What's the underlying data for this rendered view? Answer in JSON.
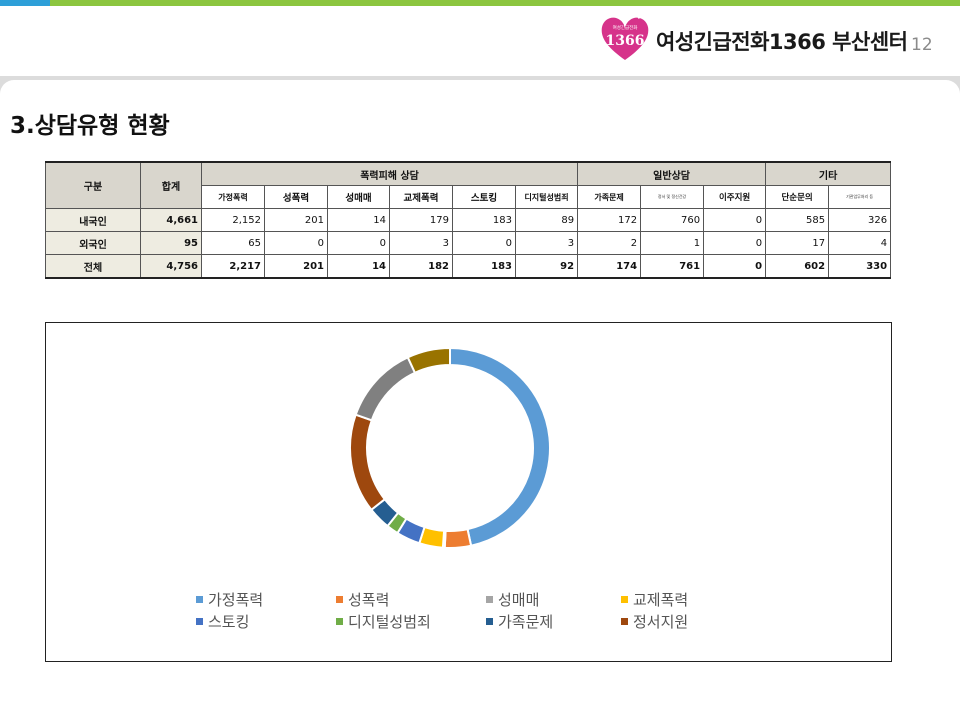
{
  "header": {
    "org_name": "여성긴급전화1366 부산센터",
    "page_number": "12",
    "logo_text": "1366",
    "logo_small_text": "여성긴급전화"
  },
  "title": "3.상담유형 현황",
  "table": {
    "group_header": "구분",
    "total_header": "합계",
    "groups": [
      "폭력피해 상담",
      "일반상담",
      "기타"
    ],
    "sub_headers": [
      "가정폭력",
      "성폭력",
      "성매매",
      "교제폭력",
      "스토킹",
      "디지털성범죄",
      "가족문제",
      "정서 및 정신건강",
      "이주지원",
      "단순문의",
      "기관업무처리 등"
    ],
    "rows": [
      {
        "label": "내국인",
        "total": "4,661",
        "values": [
          "2,152",
          "201",
          "14",
          "179",
          "183",
          "89",
          "172",
          "760",
          "0",
          "585",
          "326"
        ]
      },
      {
        "label": "외국인",
        "total": "95",
        "values": [
          "65",
          "0",
          "0",
          "3",
          "0",
          "3",
          "2",
          "1",
          "0",
          "17",
          "4"
        ]
      },
      {
        "label": "전체",
        "total": "4,756",
        "values": [
          "2,217",
          "201",
          "14",
          "182",
          "183",
          "92",
          "174",
          "761",
          "0",
          "602",
          "330"
        ]
      }
    ]
  },
  "chart_data": {
    "type": "pie",
    "title": "",
    "donut": true,
    "legend_position": "bottom",
    "categories": [
      "가정폭력",
      "성폭력",
      "성매매",
      "교제폭력",
      "스토킹",
      "디지털성범죄",
      "가족문제",
      "정서지원",
      "",
      "",
      ""
    ],
    "values": [
      2217,
      201,
      14,
      182,
      183,
      92,
      174,
      761,
      0,
      602,
      330
    ],
    "colors": [
      "#5b9bd5",
      "#ed7d31",
      "#a5a5a5",
      "#ffc000",
      "#4472c4",
      "#70ad47",
      "#255e91",
      "#9e480e",
      "#636363",
      "#808080",
      "#997300"
    ],
    "legend_entries": [
      "가정폭력",
      "성폭력",
      "성매매",
      "교제폭력",
      "스토킹",
      "디지털성범죄",
      "가족문제",
      "정서지원"
    ]
  }
}
